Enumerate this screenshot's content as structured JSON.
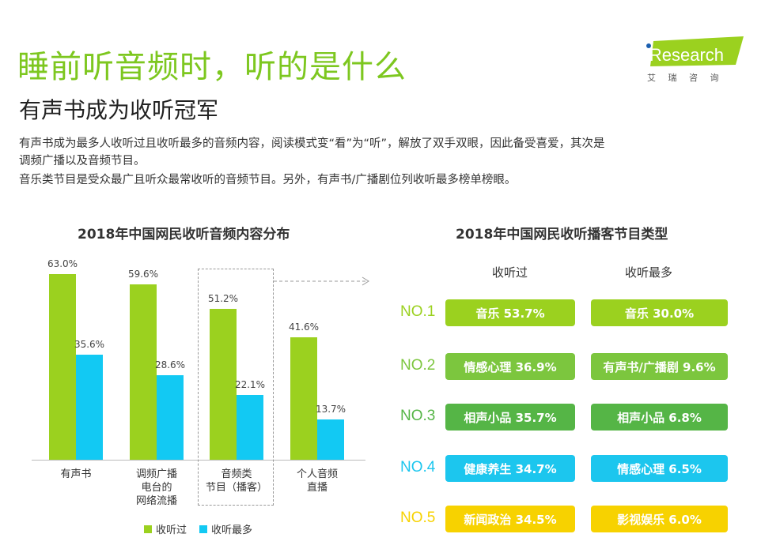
{
  "header": {
    "title": "睡前听音频时，听的是什么",
    "subtitle": "有声书成为收听冠军",
    "desc_lines": [
      "有声书成为最多人收听过且收听最多的音频内容，阅读模式变“看”为“听”，解放了双手双眼，因此备受喜爱，其次是",
      "调频广播以及音频节目。",
      "音乐类节目是受众最广且听众最常收听的音频节目。另外，有声书/广播剧位列收听最多榜单榜眼。"
    ]
  },
  "logo": {
    "text": "iResearch",
    "cn": "艾 瑞 咨 询"
  },
  "chart_data": [
    {
      "type": "bar",
      "title": "2018年中国网民收听音频内容分布",
      "categories": [
        "有声书",
        "调频广播\n电台的\n网络流播",
        "音频类\n节目（播客）",
        "个人音频\n直播"
      ],
      "series": [
        {
          "name": "收听过",
          "values": [
            63.0,
            59.6,
            51.2,
            41.6
          ],
          "color": "#9BD11F"
        },
        {
          "name": "收听最多",
          "values": [
            35.6,
            28.6,
            22.1,
            13.7
          ],
          "color": "#12C9F3"
        }
      ],
      "value_labels": [
        [
          "63.0%",
          "59.6%",
          "51.2%",
          "41.6%"
        ],
        [
          "35.6%",
          "28.6%",
          "22.1%",
          "13.7%"
        ]
      ],
      "ylim": [
        0,
        70
      ],
      "legend": "bottom",
      "highlight_category": "音频类\n节目（播客）"
    },
    {
      "type": "table",
      "title": "2018年中国网民收听播客节目类型",
      "columns": [
        "收听过",
        "收听最多"
      ],
      "rows": [
        {
          "rank": "NO.1",
          "color": "#9BD11F",
          "heard": "音乐 53.7%",
          "most": "音乐 30.0%"
        },
        {
          "rank": "NO.2",
          "color": "#7CC63E",
          "heard": "情感心理 36.9%",
          "most": "有声书/广播剧 9.6%"
        },
        {
          "rank": "NO.3",
          "color": "#55B546",
          "heard": "相声小品 35.7%",
          "most": "相声小品 6.8%"
        },
        {
          "rank": "NO.4",
          "color": "#1CC6EE",
          "heard": "健康养生 34.7%",
          "most": "情感心理 6.5%"
        },
        {
          "rank": "NO.5",
          "color": "#F7D200",
          "heard": "新闻政治 34.5%",
          "most": "影视娱乐 6.0%"
        }
      ]
    }
  ]
}
